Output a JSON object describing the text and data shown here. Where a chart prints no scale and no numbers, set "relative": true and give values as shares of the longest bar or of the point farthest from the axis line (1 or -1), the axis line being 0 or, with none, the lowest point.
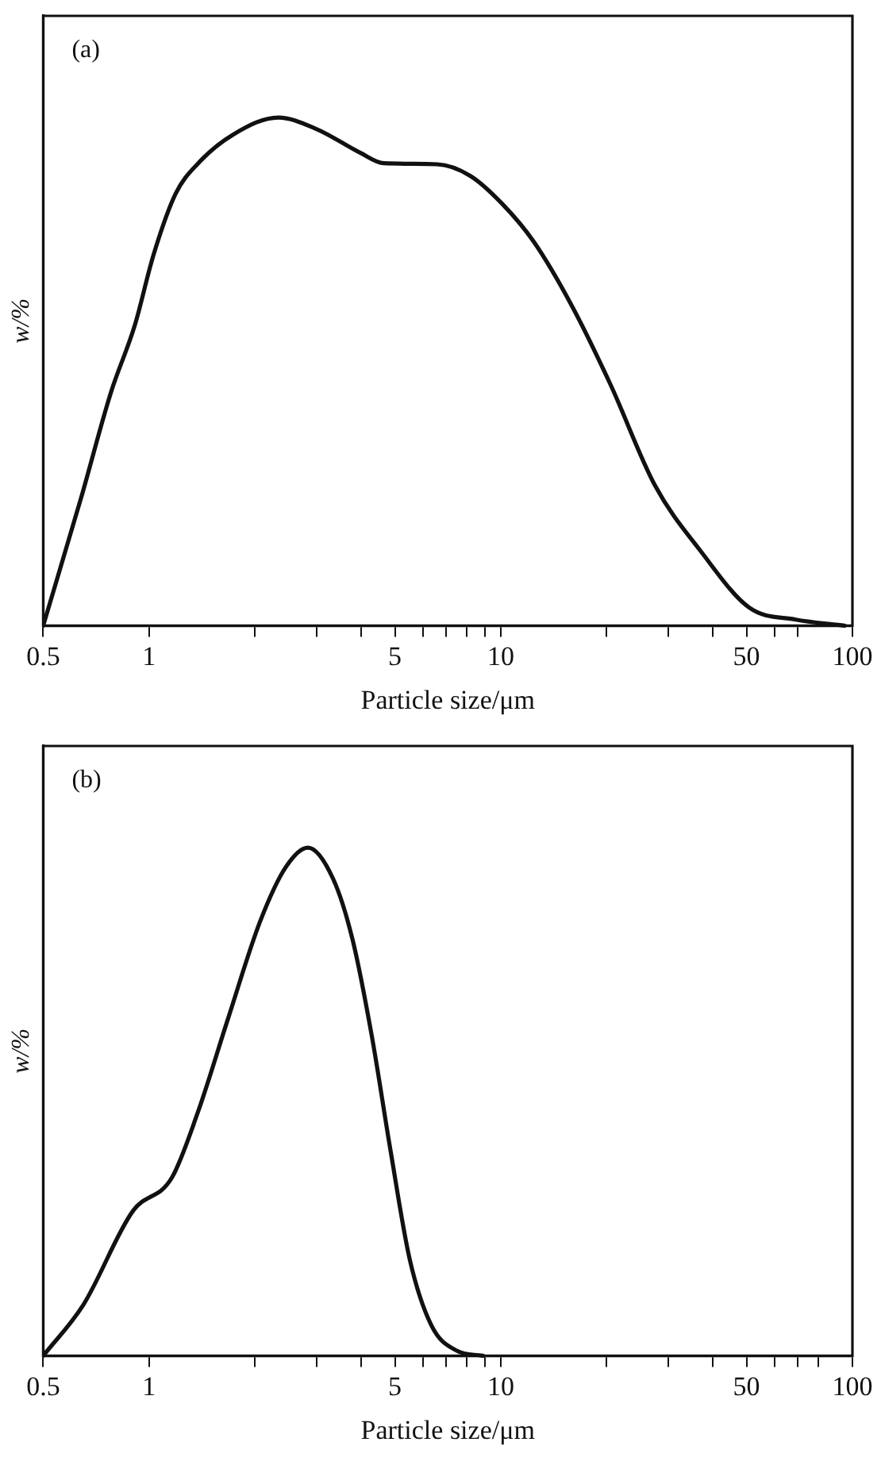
{
  "chart_data": [
    {
      "type": "line",
      "relative": true,
      "log": "x",
      "annotations": [
        "(a)"
      ],
      "xlabel": "Particle size/μm",
      "ylabel": "w/%",
      "xlim": [
        0.5,
        100
      ],
      "xticks": [
        0.5,
        1,
        {
          "value": 2,
          "label": null
        },
        {
          "value": 3,
          "label": null
        },
        {
          "value": 4,
          "label": null
        },
        5,
        {
          "value": 6,
          "label": null
        },
        {
          "value": 7,
          "label": null
        },
        {
          "value": 8,
          "label": null
        },
        {
          "value": 9,
          "label": null
        },
        10,
        {
          "value": 20,
          "label": null
        },
        {
          "value": 30,
          "label": null
        },
        {
          "value": 40,
          "label": null
        },
        50,
        {
          "value": 60,
          "label": null
        },
        {
          "value": 70,
          "label": null
        },
        100
      ],
      "marker": "none",
      "legend": false,
      "grid": false,
      "series": [
        {
          "color": "#111111",
          "x": [
            0.5,
            0.64,
            0.78,
            0.91,
            1.03,
            1.19,
            1.38,
            1.74,
            2.33,
            3.0,
            4.0,
            4.65,
            6.6,
            8.2,
            10.1,
            12.4,
            16,
            20.5,
            27.5,
            37,
            51,
            69,
            95
          ],
          "values": [
            0,
            0.25,
            0.46,
            0.59,
            0.73,
            0.85,
            0.91,
            0.967,
            1,
            0.977,
            0.93,
            0.91,
            0.908,
            0.885,
            0.83,
            0.756,
            0.627,
            0.475,
            0.275,
            0.147,
            0.035,
            0.012,
            0
          ]
        }
      ]
    },
    {
      "type": "line",
      "relative": true,
      "log": "x",
      "annotations": [
        "(b)"
      ],
      "xlabel": "Particle size/μm",
      "ylabel": "w/%",
      "xlim": [
        0.5,
        100
      ],
      "xticks": [
        0.5,
        1,
        {
          "value": 2,
          "label": null
        },
        {
          "value": 3,
          "label": null
        },
        {
          "value": 4,
          "label": null
        },
        5,
        {
          "value": 6,
          "label": null
        },
        {
          "value": 7,
          "label": null
        },
        {
          "value": 8,
          "label": null
        },
        {
          "value": 9,
          "label": null
        },
        10,
        {
          "value": 20,
          "label": null
        },
        {
          "value": 30,
          "label": null
        },
        {
          "value": 40,
          "label": null
        },
        50,
        {
          "value": 60,
          "label": null
        },
        {
          "value": 70,
          "label": null
        },
        {
          "value": 80,
          "label": null
        },
        100
      ],
      "marker": "none",
      "legend": false,
      "grid": false,
      "series": [
        {
          "color": "#111111",
          "x": [
            0.5,
            0.65,
            0.9,
            1.16,
            1.37,
            1.68,
            2.07,
            2.45,
            2.83,
            3.34,
            3.79,
            4.3,
            4.86,
            5.51,
            6.36,
            7.5,
            8.9
          ],
          "values": [
            0,
            0.1,
            0.285,
            0.35,
            0.475,
            0.665,
            0.855,
            0.962,
            1,
            0.938,
            0.819,
            0.629,
            0.404,
            0.19,
            0.059,
            0.01,
            0
          ]
        }
      ]
    }
  ]
}
